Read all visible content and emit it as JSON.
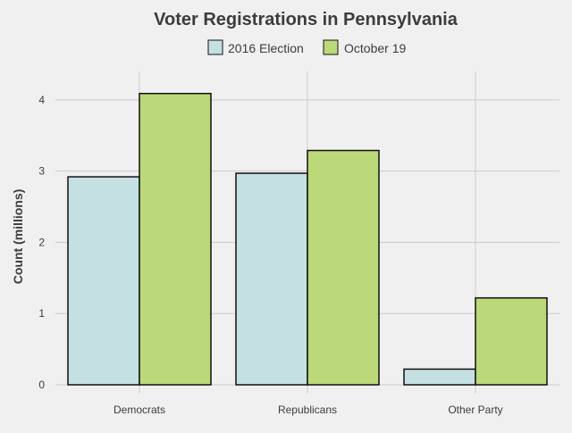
{
  "chart_data": {
    "type": "bar",
    "title": "Voter Registrations in Pennsylvania",
    "xlabel": "",
    "ylabel": "Count  (millions)",
    "categories": [
      "Democrats",
      "Republicans",
      "Other Party"
    ],
    "series": [
      {
        "name": "2016 Election",
        "values": [
          2.92,
          2.97,
          0.22
        ],
        "color": "#c5e0e3"
      },
      {
        "name": "October 19",
        "values": [
          4.09,
          3.29,
          1.22
        ],
        "color": "#bcd97a"
      }
    ],
    "ylim": [
      0,
      4.4
    ],
    "yticks": [
      0,
      1,
      2,
      3,
      4
    ],
    "grid": true,
    "legend_position": "top-center",
    "bar_edge_color": "#111111",
    "background_color": "#f0f0f0",
    "grid_color": "#cbcbcb"
  }
}
